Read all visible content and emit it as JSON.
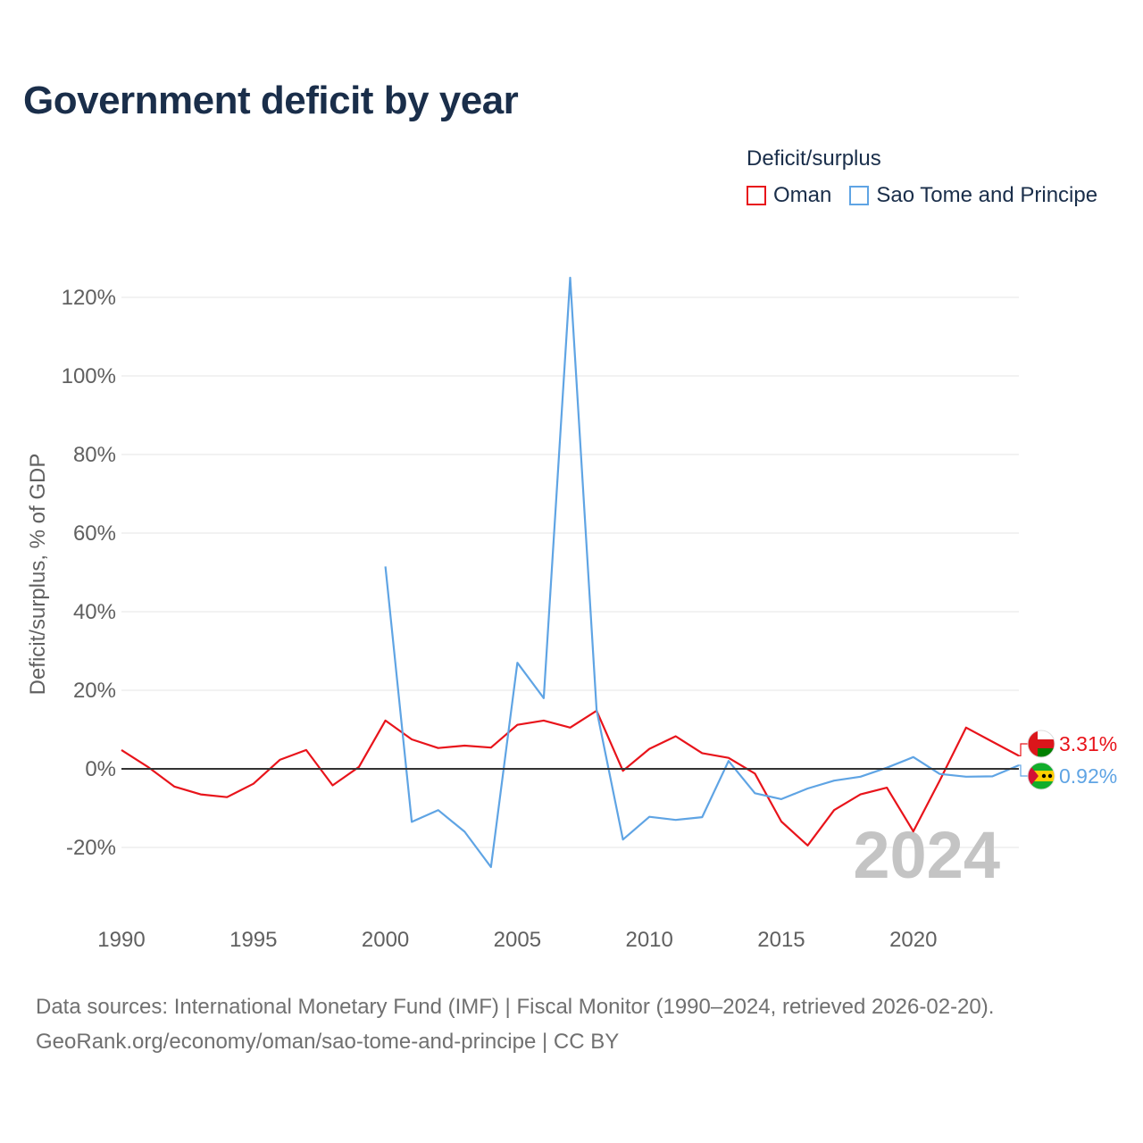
{
  "title": "Government deficit by year",
  "legend_title": "Deficit/surplus",
  "year_watermark": "2024",
  "footer": {
    "line1": "Data sources: International Monetary Fund (IMF) | Fiscal Monitor (1990–2024, retrieved 2026-02-20).",
    "line2": "GeoRank.org/economy/oman/sao-tome-and-principe | CC BY"
  },
  "colors": {
    "oman": "#e8141b",
    "stp": "#5fa4e4",
    "zero": "#333333",
    "grid": "#e6e6e6"
  },
  "chart_data": {
    "type": "line",
    "title": "Government deficit by year",
    "ylabel": "Deficit/surplus, % of GDP",
    "xlabel": "",
    "xlim": [
      1990,
      2024
    ],
    "ylim": [
      -30,
      130
    ],
    "yticks": [
      -20,
      0,
      20,
      40,
      60,
      80,
      100,
      120
    ],
    "ytick_labels": [
      "-20%",
      "0%",
      "20%",
      "40%",
      "60%",
      "80%",
      "100%",
      "120%"
    ],
    "xticks": [
      1990,
      1995,
      2000,
      2005,
      2010,
      2015,
      2020
    ],
    "xtick_labels": [
      "1990",
      "1995",
      "2000",
      "2005",
      "2010",
      "2015",
      "2020"
    ],
    "series": [
      {
        "name": "Oman",
        "color": "#e8141b",
        "end_label": "3.31%",
        "x": [
          1990,
          1991,
          1992,
          1993,
          1994,
          1995,
          1996,
          1997,
          1998,
          1999,
          2000,
          2001,
          2002,
          2003,
          2004,
          2005,
          2006,
          2007,
          2008,
          2009,
          2010,
          2011,
          2012,
          2013,
          2014,
          2015,
          2016,
          2017,
          2018,
          2019,
          2020,
          2021,
          2022,
          2023,
          2024
        ],
        "values": [
          4.8,
          0.5,
          -4.5,
          -6.5,
          -7.2,
          -3.8,
          2.3,
          4.8,
          -4.2,
          0.5,
          12.3,
          7.5,
          5.3,
          5.9,
          5.4,
          11.2,
          12.3,
          10.5,
          14.8,
          -0.5,
          5.1,
          8.3,
          4.0,
          2.8,
          -1.2,
          -13.4,
          -19.5,
          -10.5,
          -6.5,
          -4.8,
          -15.9,
          -3.0,
          10.5,
          6.9,
          3.31
        ]
      },
      {
        "name": "Sao Tome and Principe",
        "color": "#5fa4e4",
        "end_label": "0.92%",
        "x": [
          2000,
          2001,
          2002,
          2003,
          2004,
          2005,
          2006,
          2007,
          2008,
          2009,
          2010,
          2011,
          2012,
          2013,
          2014,
          2015,
          2016,
          2017,
          2018,
          2019,
          2020,
          2021,
          2022,
          2023,
          2024
        ],
        "values": [
          51.5,
          -13.5,
          -10.5,
          -16.0,
          -25.0,
          27.0,
          18.0,
          125.0,
          15.0,
          -18.0,
          -12.2,
          -13.0,
          -12.3,
          2.0,
          -6.2,
          -7.7,
          -5.0,
          -3.0,
          -2.0,
          0.3,
          3.0,
          -1.3,
          -2.0,
          -1.9,
          0.92
        ]
      }
    ]
  }
}
